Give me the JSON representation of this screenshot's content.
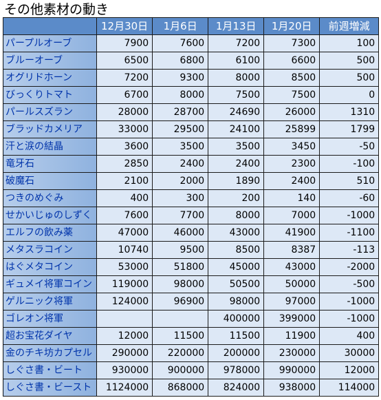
{
  "title": "その他素材の動き",
  "columns": [
    "12月30日",
    "1月6日",
    "1月13日",
    "1月20日",
    "前週増減"
  ],
  "rows": [
    {
      "name": "パープルオーブ",
      "v": [
        "7900",
        "7600",
        "7200",
        "7300",
        "100"
      ]
    },
    {
      "name": "ブルーオーブ",
      "v": [
        "6500",
        "6800",
        "6100",
        "6600",
        "500"
      ]
    },
    {
      "name": "オグリドホーン",
      "v": [
        "7200",
        "9300",
        "8000",
        "8500",
        "500"
      ]
    },
    {
      "name": "びっくりトマト",
      "v": [
        "6700",
        "8000",
        "7500",
        "7500",
        "0"
      ]
    },
    {
      "name": "パールスズラン",
      "v": [
        "28000",
        "28700",
        "24690",
        "26000",
        "1310"
      ]
    },
    {
      "name": "ブラッドカメリア",
      "v": [
        "33000",
        "29500",
        "24100",
        "25899",
        "1799"
      ]
    },
    {
      "name": "汗と涙の結晶",
      "v": [
        "3600",
        "3500",
        "3500",
        "3450",
        "-50"
      ]
    },
    {
      "name": "竜牙石",
      "v": [
        "2850",
        "2400",
        "2400",
        "2300",
        "-100"
      ]
    },
    {
      "name": "破魔石",
      "v": [
        "2100",
        "2000",
        "1890",
        "2400",
        "510"
      ]
    },
    {
      "name": "つきのめぐみ",
      "v": [
        "400",
        "300",
        "200",
        "140",
        "-60"
      ]
    },
    {
      "name": "せかいじゅのしずく",
      "v": [
        "7600",
        "7700",
        "8000",
        "7000",
        "-1000"
      ]
    },
    {
      "name": "エルフの飲み薬",
      "v": [
        "47000",
        "46000",
        "43000",
        "41900",
        "-1100"
      ]
    },
    {
      "name": "メタスラコイン",
      "v": [
        "10740",
        "9500",
        "8500",
        "8387",
        "-113"
      ]
    },
    {
      "name": "はぐメタコイン",
      "v": [
        "53000",
        "51800",
        "45000",
        "43000",
        "-2000"
      ]
    },
    {
      "name": "ギュメイ将軍コイン",
      "v": [
        "119000",
        "98000",
        "50500",
        "50000",
        "-500"
      ]
    },
    {
      "name": "ゲルニック将軍",
      "v": [
        "124000",
        "96900",
        "98000",
        "97000",
        "-1000"
      ]
    },
    {
      "name": "ゴレオン将軍",
      "v": [
        "",
        "",
        "400000",
        "399000",
        "-1000"
      ]
    },
    {
      "name": "超お宝花ダイヤ",
      "v": [
        "12000",
        "11500",
        "11500",
        "11900",
        "400"
      ]
    },
    {
      "name": "金のチキ坊カプセル",
      "v": [
        "290000",
        "220000",
        "200000",
        "230000",
        "30000"
      ]
    },
    {
      "name": "しぐさ書・ビート",
      "v": [
        "930000",
        "900000",
        "978000",
        "990000",
        "12000"
      ]
    },
    {
      "name": "しぐさ書・ビースト",
      "v": [
        "1124000",
        "868000",
        "824000",
        "938000",
        "114000"
      ]
    }
  ]
}
